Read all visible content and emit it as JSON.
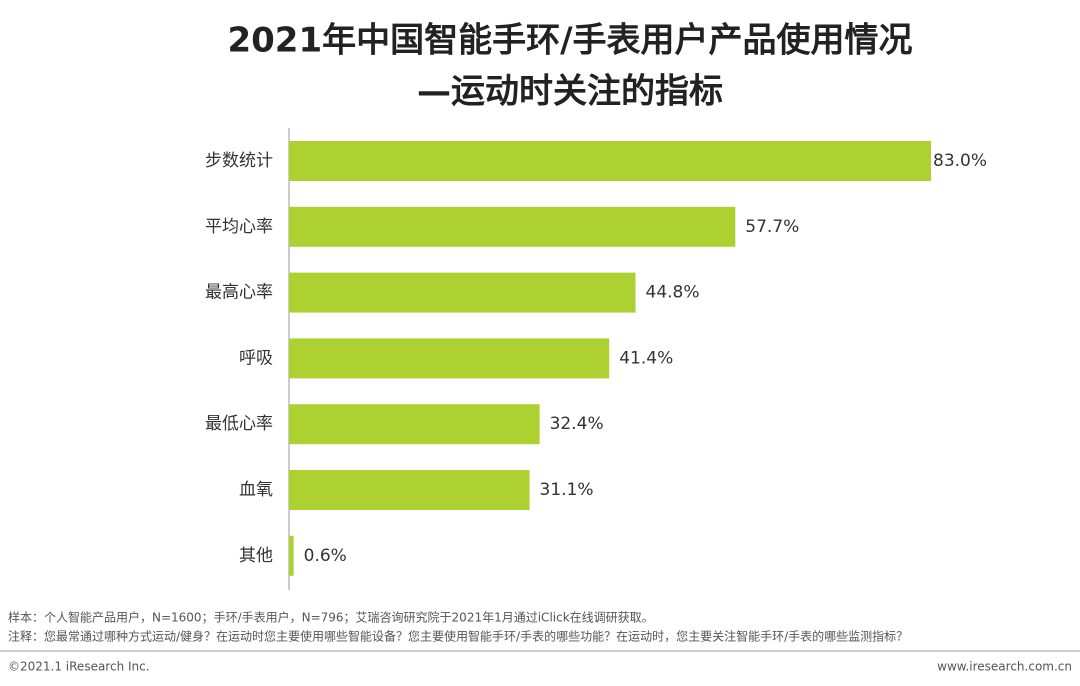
{
  "chart_data": {
    "type": "bar",
    "orientation": "horizontal",
    "title": [
      "2021年中国智能手环/手表用户产品使用情况",
      "—运动时关注的指标"
    ],
    "categories": [
      "步数统计",
      "平均心率",
      "最高心率",
      "呼吸",
      "最低心率",
      "血氧",
      "其他"
    ],
    "values": [
      83.0,
      57.7,
      44.8,
      41.4,
      32.4,
      31.1,
      0.6
    ],
    "value_labels": [
      "83.0%",
      "57.7%",
      "44.8%",
      "41.4%",
      "32.4%",
      "31.1%",
      "0.6%"
    ],
    "color": "#acd130"
  },
  "notes": [
    "样本：个人智能产品用户，N=1600；手环/手表用户，N=796；艾瑞咨询研究院于2021年1月通过iClick在线调研获取。",
    "注释：您最常通过哪种方式运动/健身？在运动时您主要使用哪些智能设备？您主要使用智能手环/手表的哪些功能？在运动时，您主要关注智能手环/手表的哪些监测指标？"
  ],
  "footer": {
    "copyright": "©2021.1 iResearch Inc.",
    "website": "www.iresearch.com.cn"
  }
}
